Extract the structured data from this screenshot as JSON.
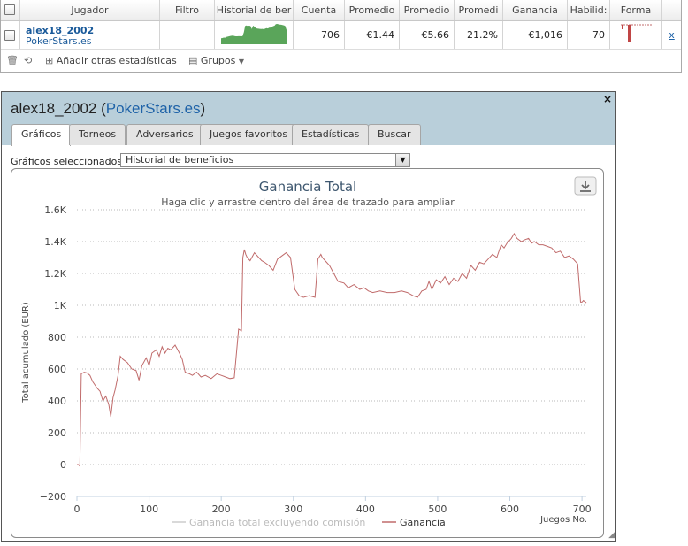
{
  "grid": {
    "headers": [
      "Jugador",
      "Filtro",
      "Historial de ber",
      "Cuenta",
      "Promedio",
      "Promedio",
      "Promedi",
      "Ganancia",
      "Habilid:",
      "Forma"
    ],
    "row": {
      "name": "alex18_2002",
      "site": "PokerStars.es",
      "count": "706",
      "avg1": "€1.44",
      "avg2": "€5.66",
      "pct": "21.2%",
      "gain": "€1,016",
      "skill": "70",
      "remove": "x"
    },
    "toolbar": {
      "add_stats": "Añadir otras estadísticas",
      "groups": "Grupos"
    }
  },
  "window": {
    "player": "alex18_2002",
    "site": "PokerStars.es",
    "close": "×",
    "tabs": [
      "Gráficos",
      "Torneos",
      "Adversarios",
      "Juegos favoritos",
      "Estadísticas",
      "Buscar"
    ],
    "active_tab": "Gráficos",
    "charts_label": "Gráficos seleccionados:",
    "selected_chart": "Historial de beneficios"
  },
  "colors": {
    "series": "#c06b6b",
    "series_faded": "#cccccc",
    "sparkline": "#5aa55a",
    "title": "#3e576f",
    "link": "#1f63a8"
  },
  "chart_data": {
    "type": "line",
    "title": "Ganancia Total",
    "subtitle": "Haga clic y arrastre dentro del área de trazado para ampliar",
    "ylabel": "Total acumulado (EUR)",
    "xlabel": "Juegos No.",
    "ylim": [
      -200,
      1600
    ],
    "xlim": [
      0,
      706
    ],
    "y_ticks": [
      -200,
      0,
      200,
      400,
      600,
      800,
      1000,
      1200,
      1400,
      1600
    ],
    "y_tick_labels": [
      "−200",
      "0",
      "200",
      "400",
      "600",
      "800",
      "1K",
      "1.2K",
      "1.4K",
      "1.6K"
    ],
    "x_ticks": [
      0,
      100,
      200,
      300,
      400,
      500,
      600,
      700
    ],
    "x_tick_labels": [
      "0",
      "100",
      "200",
      "300",
      "400",
      "500",
      "600",
      "700"
    ],
    "grid": "horizontal dotted",
    "legend": [
      "Ganancia total excluyendo comisión",
      "Ganancia"
    ],
    "series": [
      {
        "name": "Ganancia",
        "x": [
          0,
          2,
          4,
          6,
          10,
          14,
          18,
          22,
          28,
          32,
          36,
          40,
          44,
          47,
          50,
          53,
          57,
          60,
          64,
          70,
          76,
          82,
          86,
          90,
          96,
          100,
          104,
          110,
          114,
          118,
          122,
          126,
          130,
          136,
          142,
          146,
          150,
          156,
          160,
          166,
          172,
          178,
          186,
          194,
          200,
          206,
          212,
          218,
          224,
          228,
          230,
          232,
          234,
          236,
          240,
          246,
          252,
          256,
          260,
          266,
          272,
          278,
          284,
          290,
          296,
          302,
          308,
          314,
          322,
          330,
          334,
          338,
          340,
          344,
          350,
          356,
          362,
          370,
          376,
          384,
          392,
          398,
          404,
          410,
          420,
          430,
          440,
          450,
          458,
          466,
          472,
          478,
          484,
          488,
          492,
          498,
          504,
          510,
          516,
          522,
          528,
          534,
          540,
          546,
          552,
          558,
          564,
          570,
          576,
          582,
          588,
          592,
          596,
          602,
          606,
          610,
          616,
          620,
          626,
          630,
          634,
          640,
          646,
          652,
          658,
          664,
          670,
          676,
          682,
          688,
          694,
          698,
          700,
          702,
          706
        ],
        "y": [
          0,
          0,
          -10,
          570,
          580,
          575,
          560,
          520,
          480,
          460,
          400,
          430,
          380,
          300,
          420,
          470,
          560,
          680,
          660,
          640,
          600,
          590,
          530,
          620,
          670,
          620,
          700,
          720,
          680,
          740,
          700,
          730,
          720,
          750,
          700,
          660,
          580,
          570,
          560,
          580,
          550,
          560,
          540,
          570,
          560,
          550,
          540,
          545,
          850,
          840,
          1300,
          1350,
          1320,
          1300,
          1280,
          1330,
          1300,
          1280,
          1270,
          1250,
          1220,
          1290,
          1310,
          1330,
          1300,
          1100,
          1060,
          1050,
          1060,
          1050,
          1290,
          1320,
          1300,
          1280,
          1250,
          1200,
          1150,
          1140,
          1110,
          1130,
          1100,
          1110,
          1090,
          1080,
          1090,
          1080,
          1080,
          1090,
          1080,
          1060,
          1050,
          1090,
          1100,
          1150,
          1100,
          1160,
          1140,
          1180,
          1130,
          1170,
          1150,
          1200,
          1170,
          1250,
          1220,
          1270,
          1260,
          1290,
          1320,
          1300,
          1380,
          1360,
          1390,
          1420,
          1450,
          1420,
          1400,
          1410,
          1420,
          1390,
          1400,
          1380,
          1380,
          1370,
          1360,
          1330,
          1340,
          1300,
          1310,
          1290,
          1260,
          1020,
          1020,
          1030,
          1016
        ]
      }
    ]
  },
  "sparkline": [
    420,
    440,
    470,
    460,
    520,
    540,
    560,
    590,
    600,
    610,
    580,
    560,
    560,
    570,
    570,
    560,
    570,
    840,
    1300,
    1330,
    1290,
    1310,
    1300,
    1080,
    1320,
    1240,
    1150,
    1110,
    1100,
    1090,
    1080,
    1090,
    1060,
    1100,
    1140,
    1120,
    1170,
    1180,
    1230,
    1280,
    1310,
    1420,
    1440,
    1410,
    1390,
    1380,
    1360,
    1340,
    1300,
    1020
  ]
}
